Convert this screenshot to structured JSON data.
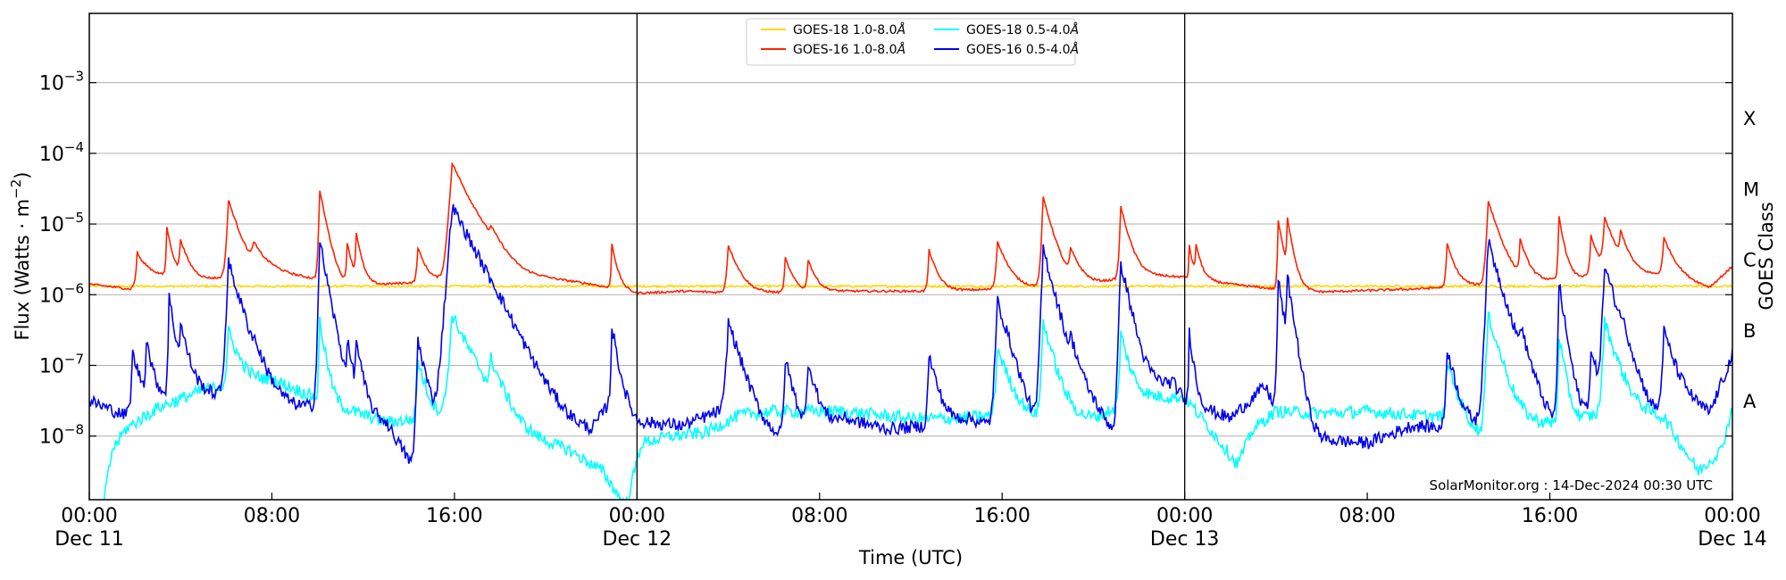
{
  "chart_data": {
    "type": "line",
    "xlabel": "Time (UTC)",
    "ylabel": "Flux (Watts · m",
    "ylabel_sup": "−2",
    "ylabel_close": ")",
    "right_label": "GOES Class",
    "yscale": "log",
    "ylim_exp": [
      -8.9,
      -2.02
    ],
    "xlim_hours": [
      0,
      72
    ],
    "grid": "horizontal",
    "legend_position": "top-center",
    "credit": "SolarMonitor.org : 14-Dec-2024 00:30 UTC",
    "y_ticks": [
      {
        "exp": -8,
        "label": "10",
        "sup": "−8"
      },
      {
        "exp": -7,
        "label": "10",
        "sup": "−7"
      },
      {
        "exp": -6,
        "label": "10",
        "sup": "−6"
      },
      {
        "exp": -5,
        "label": "10",
        "sup": "−5"
      },
      {
        "exp": -4,
        "label": "10",
        "sup": "−4"
      },
      {
        "exp": -3,
        "label": "10",
        "sup": "−3"
      }
    ],
    "goes_classes": [
      {
        "label": "A",
        "exp": -7.5
      },
      {
        "label": "B",
        "exp": -6.5
      },
      {
        "label": "C",
        "exp": -5.5
      },
      {
        "label": "M",
        "exp": -4.5
      },
      {
        "label": "X",
        "exp": -3.5
      }
    ],
    "x_ticks": [
      {
        "h": 0,
        "time": "00:00",
        "date": "Dec 11"
      },
      {
        "h": 8,
        "time": "08:00",
        "date": ""
      },
      {
        "h": 16,
        "time": "16:00",
        "date": ""
      },
      {
        "h": 24,
        "time": "00:00",
        "date": "Dec 12"
      },
      {
        "h": 32,
        "time": "08:00",
        "date": ""
      },
      {
        "h": 40,
        "time": "16:00",
        "date": ""
      },
      {
        "h": 48,
        "time": "00:00",
        "date": "Dec 13"
      },
      {
        "h": 56,
        "time": "08:00",
        "date": ""
      },
      {
        "h": 64,
        "time": "16:00",
        "date": ""
      },
      {
        "h": 72,
        "time": "00:00",
        "date": "Dec 14"
      }
    ],
    "day_boundaries_hours": [
      24,
      48
    ],
    "series": [
      {
        "name": "GOES-18 1.0-8.0",
        "unit": "Å",
        "color": "#ffd700",
        "base": [
          [
            0,
            -5.88
          ]
        ],
        "flares": []
      },
      {
        "name": "GOES-16 1.0-8.0",
        "unit": "Å",
        "color": "#ff2200",
        "base": [
          [
            0,
            -5.85
          ],
          [
            1.8,
            -5.92
          ],
          [
            2.5,
            -5.7
          ],
          [
            5,
            -5.78
          ],
          [
            6.5,
            -5.75
          ],
          [
            8,
            -5.68
          ],
          [
            10,
            -5.78
          ],
          [
            11,
            -5.88
          ],
          [
            13,
            -5.85
          ],
          [
            15.5,
            -5.8
          ],
          [
            17,
            -5.45
          ],
          [
            19,
            -5.72
          ],
          [
            22,
            -5.85
          ],
          [
            24,
            -5.98
          ],
          [
            26,
            -5.95
          ],
          [
            29,
            -5.98
          ],
          [
            33,
            -5.95
          ],
          [
            37,
            -5.95
          ],
          [
            40,
            -5.92
          ],
          [
            44,
            -5.85
          ],
          [
            46,
            -5.72
          ],
          [
            48,
            -5.75
          ],
          [
            50,
            -5.85
          ],
          [
            52,
            -5.92
          ],
          [
            54,
            -5.96
          ],
          [
            58,
            -5.92
          ],
          [
            62,
            -5.85
          ],
          [
            64,
            -5.8
          ],
          [
            67,
            -5.7
          ],
          [
            69,
            -5.72
          ],
          [
            71,
            -5.9
          ],
          [
            72,
            -5.6
          ]
        ],
        "flares": [
          [
            2.1,
            -5.6,
            0.3
          ],
          [
            3.4,
            -5.15,
            0.2
          ],
          [
            4.0,
            -5.4,
            0.3
          ],
          [
            6.1,
            -4.7,
            0.4
          ],
          [
            7.2,
            -5.6,
            0.5
          ],
          [
            10.1,
            -4.55,
            0.25
          ],
          [
            11.3,
            -5.4,
            0.2
          ],
          [
            11.7,
            -5.25,
            0.2
          ],
          [
            14.4,
            -5.5,
            0.3
          ],
          [
            15.9,
            -4.15,
            0.6
          ],
          [
            17.6,
            -5.6,
            0.4
          ],
          [
            22.9,
            -5.4,
            0.2
          ],
          [
            28.0,
            -5.4,
            0.4
          ],
          [
            30.5,
            -5.65,
            0.3
          ],
          [
            31.5,
            -5.7,
            0.3
          ],
          [
            36.8,
            -5.5,
            0.3
          ],
          [
            39.8,
            -5.35,
            0.4
          ],
          [
            41.8,
            -4.65,
            0.35
          ],
          [
            43.0,
            -5.6,
            0.4
          ],
          [
            45.2,
            -4.8,
            0.3
          ],
          [
            48.2,
            -5.5,
            0.15
          ],
          [
            48.5,
            -5.5,
            0.2
          ],
          [
            52.1,
            -5.0,
            0.2
          ],
          [
            52.5,
            -5.0,
            0.2
          ],
          [
            59.5,
            -5.4,
            0.3
          ],
          [
            61.3,
            -4.7,
            0.4
          ],
          [
            62.7,
            -5.4,
            0.3
          ],
          [
            64.4,
            -4.95,
            0.2
          ],
          [
            65.8,
            -5.3,
            0.3
          ],
          [
            66.4,
            -5.0,
            0.4
          ],
          [
            67.1,
            -5.35,
            0.3
          ],
          [
            69.0,
            -5.35,
            0.4
          ]
        ]
      },
      {
        "name": "GOES-18 0.5-4.0",
        "unit": "Å",
        "color": "#00ffff",
        "base": [
          [
            0,
            -8.9
          ],
          [
            0.5,
            -9.2
          ],
          [
            1,
            -8.2
          ],
          [
            1.6,
            -7.9
          ],
          [
            3,
            -7.6
          ],
          [
            5,
            -7.35
          ],
          [
            8,
            -7.2
          ],
          [
            11,
            -7.6
          ],
          [
            13,
            -7.8
          ],
          [
            15,
            -7.75
          ],
          [
            17,
            -7.6
          ],
          [
            19,
            -8.0
          ],
          [
            21,
            -8.2
          ],
          [
            22.5,
            -8.5
          ],
          [
            23.5,
            -9.0
          ],
          [
            24.2,
            -8.1
          ],
          [
            25.5,
            -8.0
          ],
          [
            27,
            -7.95
          ],
          [
            28.5,
            -7.7
          ],
          [
            30,
            -7.65
          ],
          [
            33,
            -7.65
          ],
          [
            36,
            -7.75
          ],
          [
            38,
            -7.75
          ],
          [
            40,
            -7.7
          ],
          [
            42,
            -7.75
          ],
          [
            44,
            -7.75
          ],
          [
            46,
            -7.45
          ],
          [
            48,
            -7.45
          ],
          [
            49,
            -7.85
          ],
          [
            50.3,
            -8.4
          ],
          [
            51,
            -7.9
          ],
          [
            52,
            -7.65
          ],
          [
            54,
            -7.68
          ],
          [
            56,
            -7.65
          ],
          [
            58,
            -7.7
          ],
          [
            60,
            -7.75
          ],
          [
            61,
            -8.0
          ],
          [
            63,
            -7.85
          ],
          [
            65,
            -7.8
          ],
          [
            67,
            -7.6
          ],
          [
            69,
            -7.75
          ],
          [
            70.5,
            -8.5
          ],
          [
            71.5,
            -8.2
          ],
          [
            72,
            -7.6
          ]
        ],
        "flares": [
          [
            6.1,
            -6.6,
            0.4
          ],
          [
            10.1,
            -6.4,
            0.2
          ],
          [
            14.4,
            -7.0,
            0.3
          ],
          [
            15.9,
            -6.3,
            0.6
          ],
          [
            17.6,
            -7.1,
            0.4
          ],
          [
            39.8,
            -6.8,
            0.4
          ],
          [
            41.8,
            -6.4,
            0.35
          ],
          [
            45.2,
            -6.6,
            0.3
          ],
          [
            59.5,
            -7.0,
            0.3
          ],
          [
            61.3,
            -6.3,
            0.4
          ],
          [
            64.4,
            -6.6,
            0.2
          ],
          [
            66.4,
            -6.4,
            0.4
          ]
        ]
      },
      {
        "name": "GOES-16 0.5-4.0",
        "unit": "Å",
        "color": "#0000ee",
        "base": [
          [
            0,
            -7.5
          ],
          [
            1.5,
            -7.7
          ],
          [
            3,
            -7.45
          ],
          [
            5,
            -7.4
          ],
          [
            7,
            -7.45
          ],
          [
            9,
            -7.6
          ],
          [
            11,
            -7.55
          ],
          [
            13,
            -7.8
          ],
          [
            14.5,
            -8.6
          ],
          [
            15.2,
            -8.3
          ],
          [
            15.6,
            -8.9
          ],
          [
            17,
            -8.3
          ],
          [
            18.5,
            -8.6
          ],
          [
            20,
            -8.1
          ],
          [
            22,
            -8.0
          ],
          [
            23,
            -7.4
          ],
          [
            24,
            -7.8
          ],
          [
            26,
            -7.85
          ],
          [
            28,
            -7.6
          ],
          [
            29.5,
            -8.0
          ],
          [
            31,
            -8.05
          ],
          [
            33,
            -7.75
          ],
          [
            35,
            -7.9
          ],
          [
            37,
            -7.85
          ],
          [
            38.5,
            -7.75
          ],
          [
            40,
            -7.9
          ],
          [
            41,
            -8.3
          ],
          [
            43,
            -7.95
          ],
          [
            44,
            -7.75
          ],
          [
            45,
            -8.0
          ],
          [
            46.5,
            -7.3
          ],
          [
            47.5,
            -7.25
          ],
          [
            48,
            -7.5
          ],
          [
            50,
            -7.75
          ],
          [
            51.5,
            -7.3
          ],
          [
            52.5,
            -7.9
          ],
          [
            54,
            -8.05
          ],
          [
            56,
            -8.1
          ],
          [
            58,
            -7.85
          ],
          [
            60,
            -7.9
          ],
          [
            62,
            -7.75
          ],
          [
            64,
            -7.9
          ],
          [
            66,
            -7.6
          ],
          [
            68,
            -7.95
          ],
          [
            70,
            -7.6
          ],
          [
            71,
            -7.7
          ],
          [
            72,
            -6.85
          ]
        ],
        "flares": [
          [
            1.9,
            -6.9,
            0.3
          ],
          [
            2.5,
            -6.7,
            0.2
          ],
          [
            3.5,
            -6.05,
            0.2
          ],
          [
            4.0,
            -6.55,
            0.3
          ],
          [
            6.1,
            -5.55,
            0.4
          ],
          [
            7.2,
            -7.3,
            0.5
          ],
          [
            10.1,
            -5.25,
            0.25
          ],
          [
            11.3,
            -6.8,
            0.2
          ],
          [
            11.7,
            -6.75,
            0.2
          ],
          [
            14.4,
            -6.65,
            0.3
          ],
          [
            15.9,
            -4.75,
            0.7
          ],
          [
            17.6,
            -6.85,
            0.4
          ],
          [
            22.9,
            -6.5,
            0.2
          ],
          [
            28.0,
            -6.4,
            0.4
          ],
          [
            30.5,
            -6.95,
            0.3
          ],
          [
            31.5,
            -7.0,
            0.3
          ],
          [
            36.8,
            -6.9,
            0.3
          ],
          [
            39.8,
            -6.1,
            0.4
          ],
          [
            41.8,
            -5.35,
            0.35
          ],
          [
            43.0,
            -6.95,
            0.4
          ],
          [
            45.2,
            -5.55,
            0.3
          ],
          [
            48.2,
            -6.55,
            0.15
          ],
          [
            52.1,
            -5.8,
            0.2
          ],
          [
            52.5,
            -5.8,
            0.2
          ],
          [
            59.5,
            -6.8,
            0.3
          ],
          [
            61.3,
            -5.25,
            0.4
          ],
          [
            62.7,
            -6.7,
            0.3
          ],
          [
            64.4,
            -5.85,
            0.2
          ],
          [
            65.8,
            -6.9,
            0.3
          ],
          [
            66.4,
            -5.6,
            0.4
          ],
          [
            67.1,
            -6.9,
            0.3
          ],
          [
            69.0,
            -6.55,
            0.4
          ]
        ]
      }
    ]
  }
}
